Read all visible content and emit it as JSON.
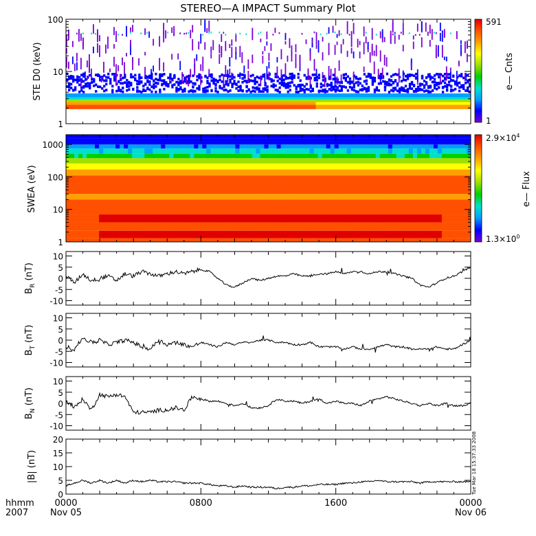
{
  "title": "STEREO—A IMPACT Summary Plot",
  "stamp": "Tue Mar 18 15:37:33 2008",
  "time_axis": {
    "row_label_1": "hhmm",
    "row_label_2": "2007",
    "ticks": [
      {
        "hour": 0,
        "label": "0000",
        "sublabel": "Nov 05"
      },
      {
        "hour": 8,
        "label": "0800",
        "sublabel": ""
      },
      {
        "hour": 16,
        "label": "1600",
        "sublabel": ""
      },
      {
        "hour": 24,
        "label": "0000",
        "sublabel": "Nov 06"
      }
    ],
    "range_hours": [
      0,
      24
    ]
  },
  "colors": {
    "colormap": [
      "#7a00d6",
      "#0000ff",
      "#00a0ff",
      "#00e0c8",
      "#00d000",
      "#a0e000",
      "#ffff00",
      "#ffa000",
      "#ff5000",
      "#e00000"
    ],
    "trace": "#000000"
  },
  "spectrograms": {
    "ste": {
      "ylabel": "STE D0 (keV)",
      "yticks": [
        {
          "v": 1,
          "label": "1"
        },
        {
          "v": 10,
          "label": "10"
        },
        {
          "v": 100,
          "label": "100"
        }
      ],
      "ylim": [
        1,
        100
      ],
      "colorbar": {
        "label": "e— Cnts",
        "max_label": "591",
        "min_label": "1"
      }
    },
    "swea": {
      "ylabel": "SWEA (eV)",
      "yticks": [
        {
          "v": 1,
          "label": "1"
        },
        {
          "v": 10,
          "label": "10"
        },
        {
          "v": 100,
          "label": "100"
        },
        {
          "v": 1000,
          "label": "1000"
        }
      ],
      "ylim": [
        1,
        2000
      ],
      "colorbar": {
        "label": "e— Flux",
        "max_base": "2.9×10",
        "max_exp": "4",
        "min_base": "1.3×10",
        "min_exp": "0"
      }
    }
  },
  "chart_data": [
    {
      "type": "heatmap",
      "name": "ste",
      "description_units": "keV vs time, log counts",
      "ylim": [
        1,
        100
      ],
      "clim": [
        1,
        591
      ]
    },
    {
      "type": "heatmap",
      "name": "swea",
      "ylim": [
        1,
        2000
      ],
      "clim": [
        1.3,
        29000
      ]
    },
    {
      "type": "line",
      "name": "br",
      "ylabel_main": "B",
      "ylabel_sub": "R",
      "ylabel_unit": " (nT)",
      "ylim": [
        -12,
        12
      ],
      "yticks": [
        -10,
        -5,
        0,
        5,
        10
      ],
      "x": [
        0,
        0.5,
        1,
        1.5,
        2,
        2.5,
        3,
        3.5,
        4,
        4.5,
        5,
        5.5,
        6,
        6.5,
        7,
        7.5,
        8,
        8.5,
        9,
        9.5,
        10,
        10.5,
        11,
        11.5,
        12,
        12.5,
        13,
        13.5,
        14,
        14.5,
        15,
        15.5,
        16,
        16.5,
        17,
        17.5,
        18,
        18.5,
        19,
        19.5,
        20,
        20.5,
        21,
        21.5,
        22,
        22.5,
        23,
        23.5,
        24
      ],
      "y": [
        1,
        -2,
        2,
        -1,
        0,
        1,
        -1,
        2,
        1,
        3,
        2,
        1,
        2,
        3,
        2,
        3,
        4,
        3,
        0,
        -3,
        -4,
        -2,
        0,
        -1,
        0,
        1,
        1,
        2,
        1,
        1,
        2,
        2,
        3,
        2,
        3,
        3,
        2,
        3,
        3,
        2,
        1,
        0,
        -3,
        -4,
        -2,
        0,
        1,
        3,
        5
      ]
    },
    {
      "type": "line",
      "name": "bt",
      "ylabel_main": "B",
      "ylabel_sub": "T",
      "ylabel_unit": " (nT)",
      "ylim": [
        -12,
        12
      ],
      "yticks": [
        -10,
        -5,
        0,
        5,
        10
      ],
      "x": [
        0,
        0.5,
        1,
        1.5,
        2,
        2.5,
        3,
        3.5,
        4,
        4.5,
        5,
        5.5,
        6,
        6.5,
        7,
        7.5,
        8,
        8.5,
        9,
        9.5,
        10,
        10.5,
        11,
        11.5,
        12,
        12.5,
        13,
        13.5,
        14,
        14.5,
        15,
        15.5,
        16,
        16.5,
        17,
        17.5,
        18,
        18.5,
        19,
        19.5,
        20,
        20.5,
        21,
        21.5,
        22,
        22.5,
        23,
        23.5,
        24
      ],
      "y": [
        -3,
        -4,
        1,
        -1,
        0,
        -2,
        -1,
        0,
        -1,
        -3,
        -4,
        0,
        -2,
        -1,
        -2,
        -3,
        -1,
        -2,
        -3,
        -1,
        -2,
        -1,
        -1,
        0,
        0,
        -1,
        -1,
        -2,
        -2,
        -1,
        -3,
        -3,
        -3,
        -4,
        -3,
        -4,
        -4,
        -3,
        -2,
        -3,
        -3,
        -4,
        -4,
        -4,
        -3,
        -4,
        -4,
        -2,
        0
      ]
    },
    {
      "type": "line",
      "name": "bn",
      "ylabel_main": "B",
      "ylabel_sub": "N",
      "ylabel_unit": " (nT)",
      "ylim": [
        -12,
        12
      ],
      "yticks": [
        -10,
        -5,
        0,
        5,
        10
      ],
      "x": [
        0,
        0.5,
        1,
        1.5,
        2,
        2.5,
        3,
        3.5,
        4,
        4.5,
        5,
        5.5,
        6,
        6.5,
        7,
        7.5,
        8,
        8.5,
        9,
        9.5,
        10,
        10.5,
        11,
        11.5,
        12,
        12.5,
        13,
        13.5,
        14,
        14.5,
        15,
        15.5,
        16,
        16.5,
        17,
        17.5,
        18,
        18.5,
        19,
        19.5,
        20,
        20.5,
        21,
        21.5,
        22,
        22.5,
        23,
        23.5,
        24
      ],
      "y": [
        1,
        -2,
        2,
        -3,
        4,
        3,
        4,
        3,
        -4,
        -4,
        -4,
        -3,
        -3,
        -2,
        -3,
        3,
        2,
        1,
        1,
        0,
        -1,
        0,
        -2,
        -2,
        -1,
        2,
        1,
        1,
        0,
        1,
        2,
        0,
        1,
        0,
        0,
        -1,
        1,
        2,
        3,
        2,
        1,
        0,
        -1,
        0,
        -1,
        0,
        -1,
        -1,
        0
      ]
    },
    {
      "type": "line",
      "name": "bmag",
      "ylabel_main": "|B| (nT)",
      "ylim": [
        0,
        20
      ],
      "yticks": [
        0,
        5,
        10,
        15,
        20
      ],
      "x": [
        0,
        0.5,
        1,
        1.5,
        2,
        2.5,
        3,
        3.5,
        4,
        4.5,
        5,
        5.5,
        6,
        6.5,
        7,
        7.5,
        8,
        8.5,
        9,
        9.5,
        10,
        10.5,
        11,
        11.5,
        12,
        12.5,
        13,
        13.5,
        14,
        14.5,
        15,
        15.5,
        16,
        16.5,
        17,
        17.5,
        18,
        18.5,
        19,
        19.5,
        20,
        20.5,
        21,
        21.5,
        22,
        22.5,
        23,
        23.5,
        24
      ],
      "y": [
        3,
        4,
        5,
        4,
        5,
        4,
        5,
        4,
        5,
        4.5,
        5,
        4.5,
        4.5,
        4.5,
        4,
        4,
        4,
        3.5,
        3,
        3,
        2.5,
        3,
        2.5,
        2.5,
        2.5,
        2,
        2.5,
        2.5,
        3,
        3,
        3.5,
        3.5,
        3.5,
        4,
        4,
        4.5,
        4.5,
        5,
        4.5,
        4.5,
        4.5,
        4.5,
        4,
        4.5,
        4.5,
        4.5,
        4.5,
        4.5,
        4.5
      ]
    }
  ]
}
